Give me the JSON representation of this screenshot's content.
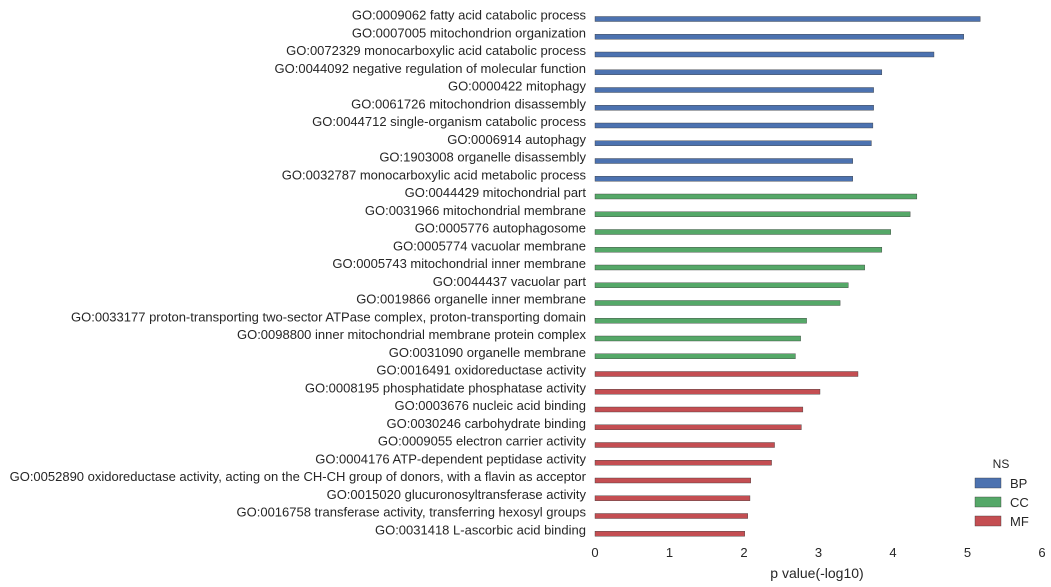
{
  "chart_data": {
    "type": "bar",
    "orientation": "horizontal",
    "xlabel": "p value(-log10)",
    "xlim": [
      0,
      6
    ],
    "xticks": [
      "0",
      "1",
      "2",
      "3",
      "4",
      "5",
      "6"
    ],
    "grid": false,
    "legend": {
      "title": "NS",
      "placement": "bottom-right",
      "entries": [
        {
          "name": "BP",
          "color": "#4c72b0"
        },
        {
          "name": "CC",
          "color": "#55a868"
        },
        {
          "name": "MF",
          "color": "#c44e52"
        }
      ]
    },
    "bars": [
      {
        "label": "GO:0009062 fatty acid catabolic process",
        "value": 5.17,
        "group": "BP"
      },
      {
        "label": "GO:0007005 mitochondrion organization",
        "value": 4.95,
        "group": "BP"
      },
      {
        "label": "GO:0072329 monocarboxylic acid catabolic process",
        "value": 4.55,
        "group": "BP"
      },
      {
        "label": "GO:0044092 negative regulation of molecular function",
        "value": 3.85,
        "group": "BP"
      },
      {
        "label": "GO:0000422 mitophagy",
        "value": 3.74,
        "group": "BP"
      },
      {
        "label": "GO:0061726 mitochondrion disassembly",
        "value": 3.74,
        "group": "BP"
      },
      {
        "label": "GO:0044712 single-organism catabolic process",
        "value": 3.73,
        "group": "BP"
      },
      {
        "label": "GO:0006914 autophagy",
        "value": 3.71,
        "group": "BP"
      },
      {
        "label": "GO:1903008 organelle disassembly",
        "value": 3.46,
        "group": "BP"
      },
      {
        "label": "GO:0032787 monocarboxylic acid metabolic process",
        "value": 3.46,
        "group": "BP"
      },
      {
        "label": "GO:0044429 mitochondrial part",
        "value": 4.32,
        "group": "CC"
      },
      {
        "label": "GO:0031966 mitochondrial membrane",
        "value": 4.23,
        "group": "CC"
      },
      {
        "label": "GO:0005776 autophagosome",
        "value": 3.97,
        "group": "CC"
      },
      {
        "label": "GO:0005774 vacuolar membrane",
        "value": 3.85,
        "group": "CC"
      },
      {
        "label": "GO:0005743 mitochondrial inner membrane",
        "value": 3.62,
        "group": "CC"
      },
      {
        "label": "GO:0044437 vacuolar part",
        "value": 3.4,
        "group": "CC"
      },
      {
        "label": "GO:0019866 organelle inner membrane",
        "value": 3.29,
        "group": "CC"
      },
      {
        "label": "GO:0033177 proton-transporting two-sector ATPase complex, proton-transporting domain",
        "value": 2.84,
        "group": "CC"
      },
      {
        "label": "GO:0098800 inner mitochondrial membrane protein complex",
        "value": 2.76,
        "group": "CC"
      },
      {
        "label": "GO:0031090 organelle membrane",
        "value": 2.69,
        "group": "CC"
      },
      {
        "label": "GO:0016491 oxidoreductase activity",
        "value": 3.53,
        "group": "MF"
      },
      {
        "label": "GO:0008195 phosphatidate phosphatase activity",
        "value": 3.02,
        "group": "MF"
      },
      {
        "label": "GO:0003676 nucleic acid binding",
        "value": 2.79,
        "group": "MF"
      },
      {
        "label": "GO:0030246 carbohydrate binding",
        "value": 2.77,
        "group": "MF"
      },
      {
        "label": "GO:0009055 electron carrier activity",
        "value": 2.41,
        "group": "MF"
      },
      {
        "label": "GO:0004176 ATP-dependent peptidase activity",
        "value": 2.37,
        "group": "MF"
      },
      {
        "label": "GO:0052890 oxidoreductase activity, acting on the CH-CH group of donors, with a flavin as acceptor",
        "value": 2.09,
        "group": "MF"
      },
      {
        "label": "GO:0015020 glucuronosyltransferase activity",
        "value": 2.08,
        "group": "MF"
      },
      {
        "label": "GO:0016758 transferase activity, transferring hexosyl groups",
        "value": 2.05,
        "group": "MF"
      },
      {
        "label": "GO:0031418 L-ascorbic acid binding",
        "value": 2.01,
        "group": "MF"
      }
    ]
  }
}
